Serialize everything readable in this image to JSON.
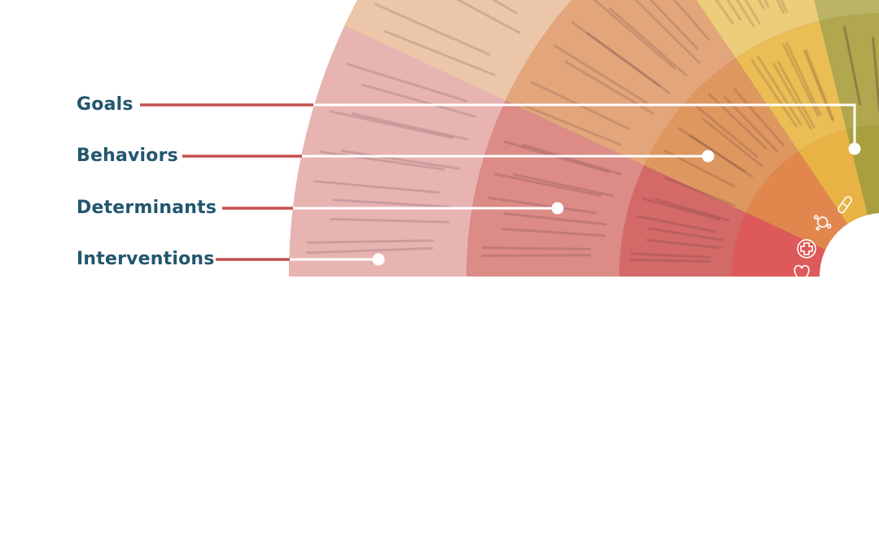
{
  "labels": {
    "goals": "Goals",
    "behaviors": "Behaviors",
    "determinants": "Determinants",
    "interventions": "Interventions"
  },
  "colors": {
    "label_text": "#23566e",
    "connector_accent": "#c4504f",
    "connector_line": "#ffffff"
  },
  "wheel": {
    "rings_outer_to_inner": [
      "interventions",
      "determinants",
      "behaviors",
      "goals"
    ],
    "sectors": [
      {
        "name": "gray-slate",
        "colors": [
          "#8e9aa3",
          "#738089",
          "#586670",
          "#3f4e59"
        ]
      },
      {
        "name": "steel-blue",
        "colors": [
          "#7a9aac",
          "#5c8298",
          "#3f6b84",
          "#2a5670"
        ]
      },
      {
        "name": "teal",
        "colors": [
          "#a6c9cb",
          "#6fa8ad",
          "#4a9197",
          "#2e8085"
        ]
      },
      {
        "name": "mauve",
        "colors": [
          "#b59aa1",
          "#946b75",
          "#7d4a58",
          "#6e3343"
        ]
      },
      {
        "name": "coral",
        "colors": [
          "#e8b4b2",
          "#dc8b86",
          "#d36a67",
          "#de5a5a"
        ]
      },
      {
        "name": "peach",
        "colors": [
          "#ecc6a8",
          "#e3a67b",
          "#df9760",
          "#e1874e"
        ]
      },
      {
        "name": "yellow",
        "colors": [
          "#f1dca0",
          "#edcd79",
          "#eabd55",
          "#e8b344"
        ]
      },
      {
        "name": "olive",
        "colors": [
          "#cfc68d",
          "#bcb366",
          "#b0a74e",
          "#a99f3e"
        ]
      }
    ],
    "center_icons": [
      "bacteria-icon",
      "medicine-icon",
      "cross-icon",
      "heart-icon",
      "buildings-icon",
      "house-icon",
      "baby-icon",
      "blocks-icon"
    ]
  }
}
